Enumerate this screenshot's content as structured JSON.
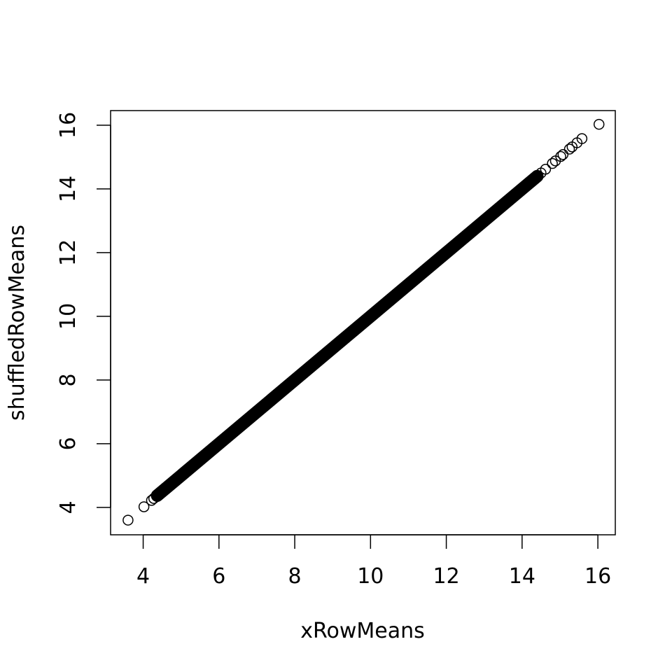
{
  "chart_data": {
    "type": "scatter",
    "title": "",
    "xlabel": "xRowMeans",
    "ylabel": "shuffledRowMeans",
    "xlim": [
      3.14,
      16.46
    ],
    "ylim": [
      3.14,
      16.46
    ],
    "x_ticks": [
      4,
      6,
      8,
      10,
      12,
      14,
      16
    ],
    "y_ticks": [
      4,
      6,
      8,
      10,
      12,
      14,
      16
    ],
    "x_tick_labels": [
      "4",
      "6",
      "8",
      "10",
      "12",
      "14",
      "16"
    ],
    "y_tick_labels": [
      "4",
      "6",
      "8",
      "10",
      "12",
      "14",
      "16"
    ],
    "grid": false,
    "legend": "none",
    "marker": "open-circle",
    "series": [
      {
        "x": [
          3.6,
          4.02,
          4.22,
          4.28,
          4.37,
          4.45,
          4.6,
          4.8,
          5.0,
          5.2,
          5.4,
          5.6,
          5.8,
          6.0,
          6.2,
          6.4,
          6.6,
          6.8,
          7.0,
          7.2,
          7.4,
          7.6,
          7.8,
          8.0,
          8.2,
          8.4,
          8.6,
          8.8,
          9.0,
          9.2,
          9.4,
          9.6,
          9.8,
          10.0,
          10.2,
          10.4,
          10.6,
          10.8,
          11.0,
          11.2,
          11.4,
          11.6,
          11.8,
          12.0,
          12.2,
          12.4,
          12.6,
          12.8,
          13.0,
          13.2,
          13.4,
          13.6,
          13.8,
          14.0,
          14.2,
          14.4,
          14.5,
          14.62,
          14.8,
          14.88,
          15.02,
          15.08,
          15.25,
          15.32,
          15.45,
          15.58,
          16.03
        ],
        "y": [
          3.6,
          4.02,
          4.22,
          4.28,
          4.37,
          4.45,
          4.6,
          4.8,
          5.0,
          5.2,
          5.4,
          5.6,
          5.8,
          6.0,
          6.2,
          6.4,
          6.6,
          6.8,
          7.0,
          7.2,
          7.4,
          7.6,
          7.8,
          8.0,
          8.2,
          8.4,
          8.6,
          8.8,
          9.0,
          9.2,
          9.4,
          9.6,
          9.8,
          10.0,
          10.2,
          10.4,
          10.6,
          10.8,
          11.0,
          11.2,
          11.4,
          11.6,
          11.8,
          12.0,
          12.2,
          12.4,
          12.6,
          12.8,
          13.0,
          13.2,
          13.4,
          13.6,
          13.8,
          14.0,
          14.2,
          14.4,
          14.5,
          14.62,
          14.8,
          14.88,
          15.02,
          15.08,
          15.25,
          15.32,
          15.45,
          15.58,
          16.03
        ]
      }
    ]
  }
}
